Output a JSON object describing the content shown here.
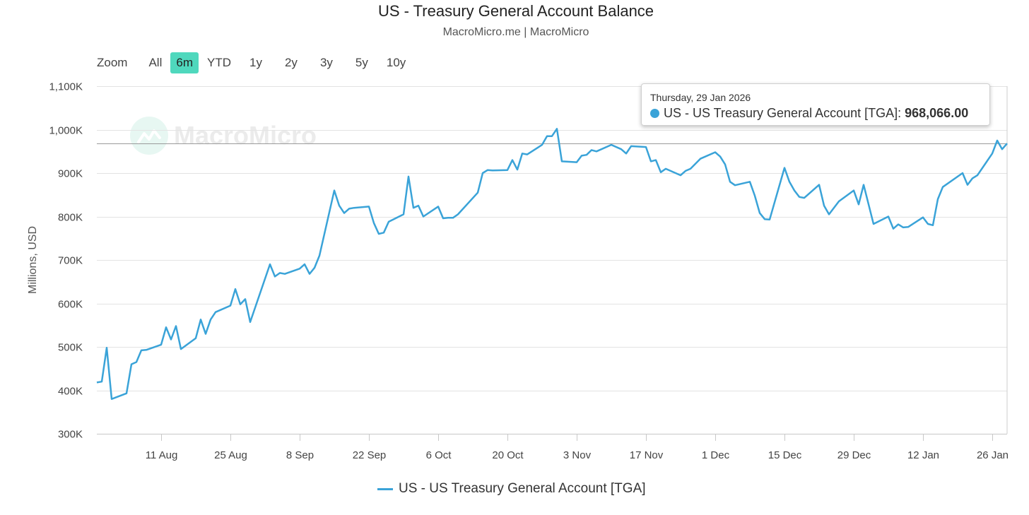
{
  "zoom": {
    "label": "Zoom",
    "buttons": [
      "All",
      "6m",
      "YTD",
      "1y",
      "2y",
      "3y",
      "5y",
      "10y"
    ],
    "active": "6m"
  },
  "watermark": {
    "text": "MacroMicro"
  },
  "tooltip": {
    "date": "Thursday, 29 Jan 2026",
    "series_label": "US - US Treasury General Account [TGA]: ",
    "value": "968,066.00"
  },
  "colors": {
    "series": "#3aa3d8",
    "active_zoom": "#4fd8bd"
  },
  "chart_data": {
    "type": "line",
    "title": "US - Treasury General Account Balance",
    "subtitle": "MacroMicro.me | MacroMicro",
    "xlabel": "",
    "ylabel": "Millions, USD",
    "ylim": [
      300000,
      1100000
    ],
    "yticks": [
      300000,
      400000,
      500000,
      600000,
      700000,
      800000,
      900000,
      1000000,
      1100000
    ],
    "ytick_labels": [
      "300K",
      "400K",
      "500K",
      "600K",
      "700K",
      "800K",
      "900K",
      "1,000K",
      "1,100K"
    ],
    "xlim": [
      "2025-07-29",
      "2026-01-29"
    ],
    "xticks": [
      "2025-08-11",
      "2025-08-25",
      "2025-09-08",
      "2025-09-22",
      "2025-10-06",
      "2025-10-20",
      "2025-11-03",
      "2025-11-17",
      "2025-12-01",
      "2025-12-15",
      "2025-12-29",
      "2026-01-12",
      "2026-01-26"
    ],
    "xtick_labels": [
      "11 Aug",
      "25 Aug",
      "8 Sep",
      "22 Sep",
      "6 Oct",
      "20 Oct",
      "3 Nov",
      "17 Nov",
      "1 Dec",
      "15 Dec",
      "29 Dec",
      "12 Jan",
      "26 Jan"
    ],
    "crosshair_value": 968066,
    "legend": "top-center",
    "grid": true,
    "series": [
      {
        "name": "US - US Treasury General Account [TGA]",
        "x": [
          "2025-07-29",
          "2025-07-30",
          "2025-07-31",
          "2025-08-01",
          "2025-08-04",
          "2025-08-05",
          "2025-08-06",
          "2025-08-07",
          "2025-08-08",
          "2025-08-11",
          "2025-08-12",
          "2025-08-13",
          "2025-08-14",
          "2025-08-15",
          "2025-08-18",
          "2025-08-19",
          "2025-08-20",
          "2025-08-21",
          "2025-08-22",
          "2025-08-25",
          "2025-08-26",
          "2025-08-27",
          "2025-08-28",
          "2025-08-29",
          "2025-09-02",
          "2025-09-03",
          "2025-09-04",
          "2025-09-05",
          "2025-09-08",
          "2025-09-09",
          "2025-09-10",
          "2025-09-11",
          "2025-09-12",
          "2025-09-15",
          "2025-09-16",
          "2025-09-17",
          "2025-09-18",
          "2025-09-19",
          "2025-09-22",
          "2025-09-23",
          "2025-09-24",
          "2025-09-25",
          "2025-09-26",
          "2025-09-29",
          "2025-09-30",
          "2025-10-01",
          "2025-10-02",
          "2025-10-03",
          "2025-10-06",
          "2025-10-07",
          "2025-10-08",
          "2025-10-09",
          "2025-10-10",
          "2025-10-14",
          "2025-10-15",
          "2025-10-16",
          "2025-10-17",
          "2025-10-20",
          "2025-10-21",
          "2025-10-22",
          "2025-10-23",
          "2025-10-24",
          "2025-10-27",
          "2025-10-28",
          "2025-10-29",
          "2025-10-30",
          "2025-10-31",
          "2025-11-03",
          "2025-11-04",
          "2025-11-05",
          "2025-11-06",
          "2025-11-07",
          "2025-11-10",
          "2025-11-12",
          "2025-11-13",
          "2025-11-14",
          "2025-11-17",
          "2025-11-18",
          "2025-11-19",
          "2025-11-20",
          "2025-11-21",
          "2025-11-24",
          "2025-11-25",
          "2025-11-26",
          "2025-11-28",
          "2025-12-01",
          "2025-12-02",
          "2025-12-03",
          "2025-12-04",
          "2025-12-05",
          "2025-12-08",
          "2025-12-09",
          "2025-12-10",
          "2025-12-11",
          "2025-12-12",
          "2025-12-15",
          "2025-12-16",
          "2025-12-17",
          "2025-12-18",
          "2025-12-19",
          "2025-12-22",
          "2025-12-23",
          "2025-12-24",
          "2025-12-26",
          "2025-12-29",
          "2025-12-30",
          "2025-12-31",
          "2026-01-02",
          "2026-01-05",
          "2026-01-06",
          "2026-01-07",
          "2026-01-08",
          "2026-01-09",
          "2026-01-12",
          "2026-01-13",
          "2026-01-14",
          "2026-01-15",
          "2026-01-16",
          "2026-01-20",
          "2026-01-21",
          "2026-01-22",
          "2026-01-23",
          "2026-01-26",
          "2026-01-27",
          "2026-01-28",
          "2026-01-29"
        ],
        "values": [
          418000,
          420000,
          498000,
          380000,
          393000,
          460000,
          465000,
          492000,
          493000,
          505000,
          545000,
          517000,
          548000,
          495000,
          520000,
          563000,
          530000,
          563000,
          580000,
          595000,
          633000,
          598000,
          610000,
          557000,
          690000,
          662000,
          670000,
          668000,
          680000,
          690000,
          668000,
          682000,
          710000,
          860000,
          825000,
          808000,
          818000,
          820000,
          823000,
          785000,
          760000,
          763000,
          788000,
          805000,
          892000,
          820000,
          825000,
          800000,
          823000,
          796000,
          797000,
          797000,
          805000,
          855000,
          900000,
          907000,
          906000,
          907000,
          930000,
          908000,
          945000,
          943000,
          965000,
          985000,
          985000,
          1002000,
          927000,
          925000,
          940000,
          942000,
          953000,
          950000,
          965000,
          955000,
          945000,
          962000,
          960000,
          927000,
          930000,
          902000,
          910000,
          895000,
          905000,
          910000,
          933000,
          948000,
          938000,
          920000,
          880000,
          872000,
          880000,
          848000,
          808000,
          794000,
          793000,
          912000,
          880000,
          860000,
          845000,
          843000,
          873000,
          825000,
          805000,
          835000,
          860000,
          828000,
          873000,
          783000,
          800000,
          772000,
          782000,
          775000,
          776000,
          798000,
          783000,
          780000,
          840000,
          868000,
          900000,
          873000,
          888000,
          895000,
          945000,
          975000,
          955000,
          968066
        ]
      }
    ]
  }
}
